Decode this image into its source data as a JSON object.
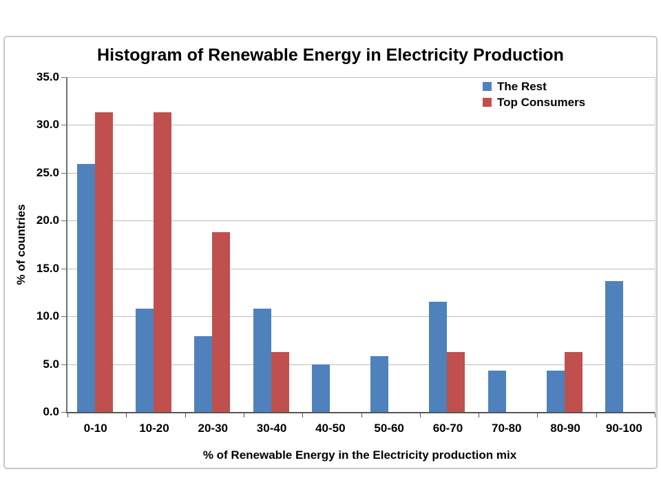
{
  "chart_data": {
    "type": "bar",
    "title": "Histogram of Renewable Energy in Electricity Production",
    "xlabel": "% of Renewable Energy in the Electricity production mix",
    "ylabel": "% of countries",
    "categories": [
      "0-10",
      "10-20",
      "20-30",
      "30-40",
      "40-50",
      "50-60",
      "60-70",
      "70-80",
      "80-90",
      "90-100"
    ],
    "series": [
      {
        "name": "The Rest",
        "color": "#4F81BD",
        "values": [
          25.9,
          10.8,
          7.9,
          10.8,
          5.0,
          5.8,
          11.5,
          4.3,
          4.3,
          13.7
        ]
      },
      {
        "name": "Top Consumers",
        "color": "#C0504D",
        "values": [
          31.3,
          31.3,
          18.8,
          6.3,
          0,
          0,
          6.3,
          0,
          6.3,
          0
        ]
      }
    ],
    "ylim": [
      0,
      35
    ],
    "ytick_step": 5,
    "ytick_labels": [
      "0.0",
      "5.0",
      "10.0",
      "15.0",
      "20.0",
      "25.0",
      "30.0",
      "35.0"
    ],
    "grid": true,
    "legend_position": "top-right"
  }
}
